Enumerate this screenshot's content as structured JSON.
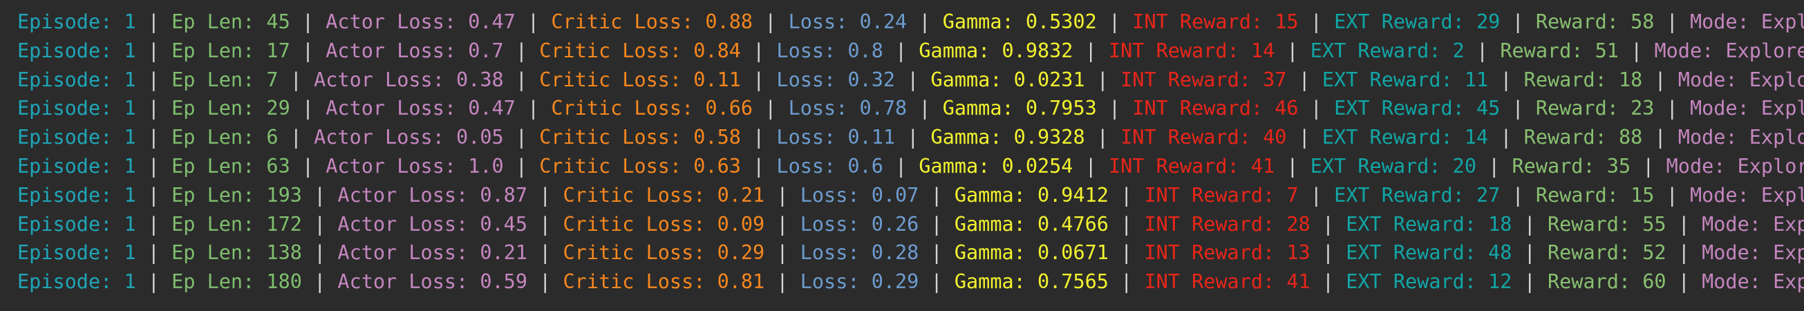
{
  "separator": "|",
  "colors": {
    "background": "#2b2b2b",
    "separator": "#d4d4d4",
    "episode": "#1fa6b8",
    "ep_len": "#7fbf6e",
    "actor_loss": "#c586c0",
    "critic_loss": "#f5871f",
    "loss": "#6d9ccf",
    "gamma": "#f2f230",
    "int_reward": "#e8261a",
    "ext_reward": "#12a6a6",
    "reward": "#88c070",
    "mode": "#c586c0"
  },
  "fields": [
    {
      "key": "episode",
      "label": "Episode:",
      "name": "episode"
    },
    {
      "key": "ep_len",
      "label": "Ep Len:",
      "name": "ep-len"
    },
    {
      "key": "actor_loss",
      "label": "Actor Loss:",
      "name": "actor-loss"
    },
    {
      "key": "critic_loss",
      "label": "Critic Loss:",
      "name": "critic-loss"
    },
    {
      "key": "loss",
      "label": "Loss:",
      "name": "loss"
    },
    {
      "key": "gamma",
      "label": "Gamma:",
      "name": "gamma"
    },
    {
      "key": "int_reward",
      "label": "INT Reward:",
      "name": "int-reward"
    },
    {
      "key": "ext_reward",
      "label": "EXT Reward:",
      "name": "ext-reward"
    },
    {
      "key": "reward",
      "label": "Reward:",
      "name": "reward"
    },
    {
      "key": "mode",
      "label": "Mode:",
      "name": "mode"
    }
  ],
  "log_lines": [
    {
      "episode": "1",
      "ep_len": "45",
      "actor_loss": "0.47",
      "critic_loss": "0.88",
      "loss": "0.24",
      "gamma": "0.5302",
      "int_reward": "15",
      "ext_reward": "29",
      "reward": "58",
      "mode": "Explore"
    },
    {
      "episode": "1",
      "ep_len": "17",
      "actor_loss": "0.7",
      "critic_loss": "0.84",
      "loss": "0.8",
      "gamma": "0.9832",
      "int_reward": "14",
      "ext_reward": "2",
      "reward": "51",
      "mode": "Explore"
    },
    {
      "episode": "1",
      "ep_len": "7",
      "actor_loss": "0.38",
      "critic_loss": "0.11",
      "loss": "0.32",
      "gamma": "0.0231",
      "int_reward": "37",
      "ext_reward": "11",
      "reward": "18",
      "mode": "Explore"
    },
    {
      "episode": "1",
      "ep_len": "29",
      "actor_loss": "0.47",
      "critic_loss": "0.66",
      "loss": "0.78",
      "gamma": "0.7953",
      "int_reward": "46",
      "ext_reward": "45",
      "reward": "23",
      "mode": "Exploit"
    },
    {
      "episode": "1",
      "ep_len": "6",
      "actor_loss": "0.05",
      "critic_loss": "0.58",
      "loss": "0.11",
      "gamma": "0.9328",
      "int_reward": "40",
      "ext_reward": "14",
      "reward": "88",
      "mode": "Exploit"
    },
    {
      "episode": "1",
      "ep_len": "63",
      "actor_loss": "1.0",
      "critic_loss": "0.63",
      "loss": "0.6",
      "gamma": "0.0254",
      "int_reward": "41",
      "ext_reward": "20",
      "reward": "35",
      "mode": "Explore"
    },
    {
      "episode": "1",
      "ep_len": "193",
      "actor_loss": "0.87",
      "critic_loss": "0.21",
      "loss": "0.07",
      "gamma": "0.9412",
      "int_reward": "7",
      "ext_reward": "27",
      "reward": "15",
      "mode": "Explore"
    },
    {
      "episode": "1",
      "ep_len": "172",
      "actor_loss": "0.45",
      "critic_loss": "0.09",
      "loss": "0.26",
      "gamma": "0.4766",
      "int_reward": "28",
      "ext_reward": "18",
      "reward": "55",
      "mode": "Exploit"
    },
    {
      "episode": "1",
      "ep_len": "138",
      "actor_loss": "0.21",
      "critic_loss": "0.29",
      "loss": "0.28",
      "gamma": "0.0671",
      "int_reward": "13",
      "ext_reward": "48",
      "reward": "52",
      "mode": "Explore"
    },
    {
      "episode": "1",
      "ep_len": "180",
      "actor_loss": "0.59",
      "critic_loss": "0.81",
      "loss": "0.29",
      "gamma": "0.7565",
      "int_reward": "41",
      "ext_reward": "12",
      "reward": "60",
      "mode": "Exploit"
    }
  ]
}
